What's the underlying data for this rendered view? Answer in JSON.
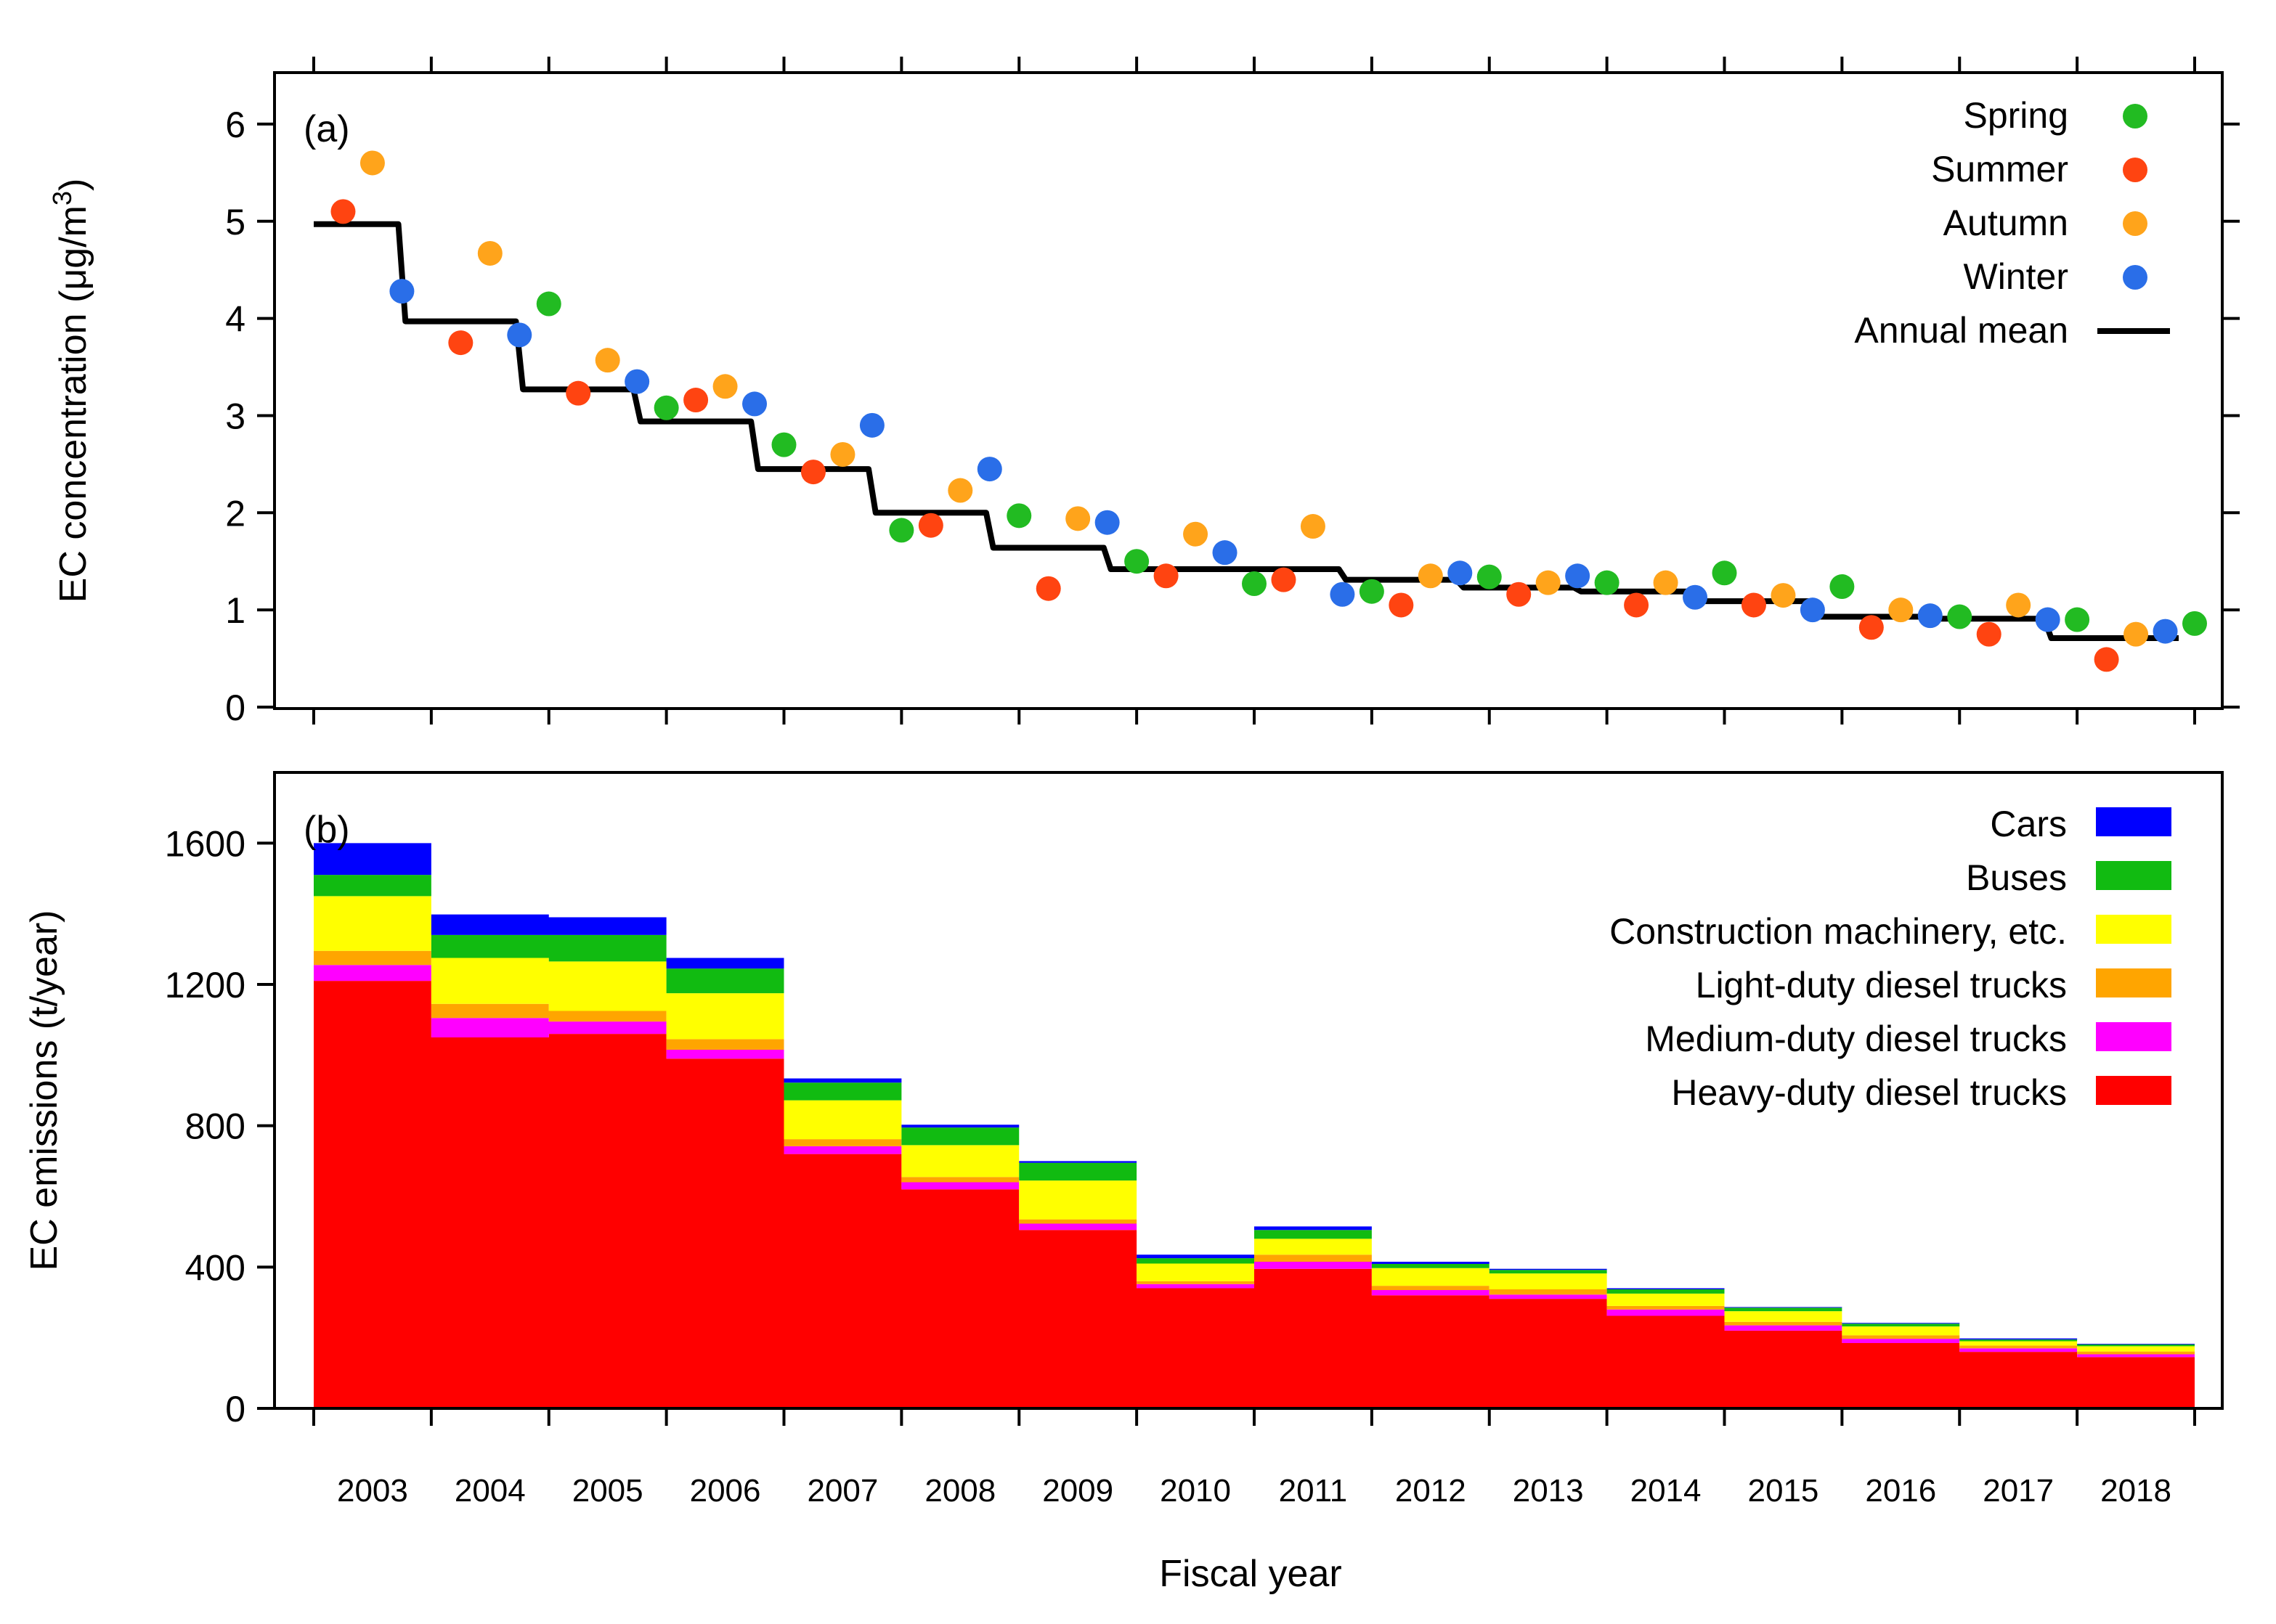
{
  "chart_data": [
    {
      "panel": "(a)",
      "type": "scatter",
      "ylabel_main": "EC concentration (μg/m",
      "ylabel_sup": "3",
      "ylabel_close": ")",
      "ylim": [
        0,
        6.5
      ],
      "yticks": [
        0,
        1,
        2,
        3,
        4,
        5,
        6
      ],
      "years": [
        "2003",
        "2004",
        "2005",
        "2006",
        "2007",
        "2008",
        "2009",
        "2010",
        "2011",
        "2012",
        "2013",
        "2014",
        "2015",
        "2016",
        "2017",
        "2018"
      ],
      "series": [
        {
          "name": "Spring",
          "color": "#22bb22",
          "values": [
            null,
            4.15,
            3.08,
            2.7,
            1.82,
            1.97,
            1.5,
            1.27,
            1.19,
            1.34,
            1.28,
            1.38,
            1.24,
            0.93,
            0.9,
            0.86
          ]
        },
        {
          "name": "Summer",
          "color": "#ff4411",
          "values": [
            5.1,
            3.75,
            3.23,
            3.16,
            2.42,
            1.87,
            1.22,
            1.35,
            1.31,
            1.05,
            1.16,
            1.05,
            1.05,
            0.82,
            0.75,
            0.49
          ]
        },
        {
          "name": "Autumn",
          "color": "#ffa41b",
          "values": [
            5.6,
            4.67,
            3.57,
            3.3,
            2.6,
            2.23,
            1.94,
            1.78,
            1.86,
            1.35,
            1.28,
            1.28,
            1.15,
            1.0,
            1.05,
            0.75
          ]
        },
        {
          "name": "Winter",
          "color": "#2a6ee8",
          "values": [
            4.28,
            3.83,
            3.35,
            3.12,
            2.9,
            2.45,
            1.9,
            1.59,
            1.16,
            1.38,
            1.35,
            1.13,
            1.0,
            0.94,
            0.9,
            0.78
          ]
        }
      ],
      "annual_mean": {
        "name": "Annual mean",
        "color": "#000000",
        "values": [
          4.97,
          3.97,
          3.27,
          2.94,
          2.45,
          2.0,
          1.64,
          1.42,
          1.42,
          1.31,
          1.23,
          1.19,
          1.09,
          0.93,
          0.91,
          0.71
        ]
      }
    },
    {
      "panel": "(b)",
      "type": "area",
      "stacked": true,
      "xlabel": "Fiscal year",
      "ylabel": "EC emissions (t/year)",
      "ylim": [
        0,
        1800
      ],
      "yticks": [
        0,
        400,
        800,
        1200,
        1600
      ],
      "categories": [
        "2003",
        "2004",
        "2005",
        "2006",
        "2007",
        "2008",
        "2009",
        "2010",
        "2011",
        "2012",
        "2013",
        "2014",
        "2015",
        "2016",
        "2017",
        "2018"
      ],
      "series": [
        {
          "name": "Heavy-duty diesel trucks",
          "color": "#ff0000",
          "values": [
            1210,
            1050,
            1060,
            990,
            720,
            620,
            505,
            340,
            395,
            320,
            310,
            262,
            220,
            185,
            160,
            145
          ]
        },
        {
          "name": "Medium-duty diesel trucks",
          "color": "#ff00ff",
          "values": [
            45,
            55,
            35,
            25,
            22,
            20,
            18,
            12,
            20,
            15,
            12,
            18,
            15,
            12,
            10,
            8
          ]
        },
        {
          "name": "Light-duty diesel trucks",
          "color": "#ffa500",
          "values": [
            40,
            40,
            30,
            30,
            20,
            15,
            12,
            8,
            20,
            12,
            15,
            10,
            10,
            10,
            8,
            8
          ]
        },
        {
          "name": "Construction machinery, etc.",
          "color": "#ffff00",
          "values": [
            155,
            130,
            140,
            130,
            110,
            90,
            110,
            50,
            45,
            50,
            45,
            35,
            30,
            25,
            12,
            15
          ]
        },
        {
          "name": "Buses",
          "color": "#11bb11",
          "values": [
            60,
            65,
            75,
            70,
            50,
            50,
            50,
            15,
            25,
            12,
            10,
            12,
            10,
            8,
            5,
            5
          ]
        },
        {
          "name": "Cars",
          "color": "#0000ff",
          "values": [
            90,
            58,
            50,
            30,
            12,
            8,
            5,
            10,
            10,
            6,
            3,
            3,
            2,
            2,
            3,
            2
          ]
        }
      ],
      "legend_order": [
        "Cars",
        "Buses",
        "Construction machinery, etc.",
        "Light-duty diesel trucks",
        "Medium-duty diesel trucks",
        "Heavy-duty diesel trucks"
      ]
    }
  ]
}
